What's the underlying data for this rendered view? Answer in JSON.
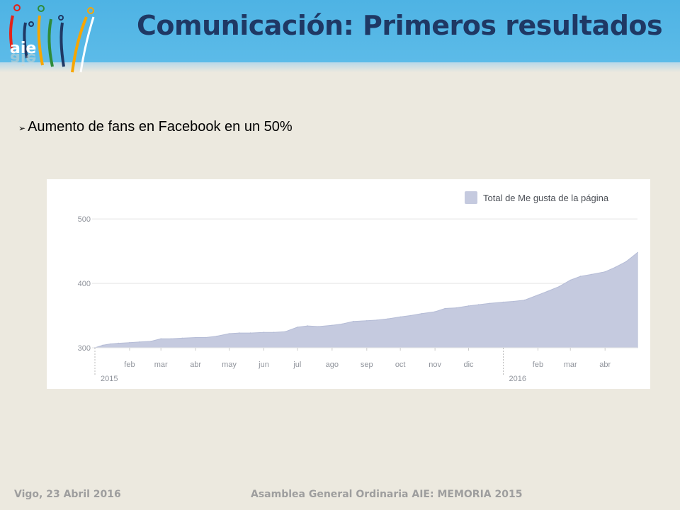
{
  "header": {
    "title": "Comunicación: Primeros resultados",
    "logo_text": "aie",
    "background_color": "#4EB3E4",
    "title_color": "#1F3864"
  },
  "bullet": {
    "icon": "arrowhead-bullet-icon",
    "text": "Aumento de fans en Facebook en un 50%"
  },
  "chart_data": {
    "type": "area",
    "legend": [
      "Total de Me gusta de la página"
    ],
    "legend_position": "top-right",
    "grid": true,
    "ylim": [
      300,
      520
    ],
    "yticks": [
      300,
      400,
      500
    ],
    "x_month_labels": [
      "feb",
      "mar",
      "abr",
      "may",
      "jun",
      "jul",
      "ago",
      "sep",
      "oct",
      "nov",
      "dic",
      "feb",
      "mar",
      "abr"
    ],
    "x_year_labels": [
      "2015",
      "2016"
    ],
    "series": [
      {
        "name": "Total de Me gusta de la página",
        "color": "#C5CADF",
        "x": [
          "2015-01-01",
          "2015-01-08",
          "2015-01-15",
          "2015-01-22",
          "2015-02-01",
          "2015-02-10",
          "2015-02-20",
          "2015-03-01",
          "2015-03-10",
          "2015-03-20",
          "2015-04-01",
          "2015-04-10",
          "2015-04-20",
          "2015-05-01",
          "2015-05-10",
          "2015-05-20",
          "2015-06-01",
          "2015-06-10",
          "2015-06-20",
          "2015-07-01",
          "2015-07-10",
          "2015-07-20",
          "2015-08-01",
          "2015-08-10",
          "2015-08-20",
          "2015-09-01",
          "2015-09-10",
          "2015-09-20",
          "2015-10-01",
          "2015-10-10",
          "2015-10-20",
          "2015-11-01",
          "2015-11-10",
          "2015-11-20",
          "2015-12-01",
          "2015-12-10",
          "2015-12-20",
          "2016-01-01",
          "2016-01-10",
          "2016-01-20",
          "2016-02-01",
          "2016-02-10",
          "2016-02-20",
          "2016-03-01",
          "2016-03-10",
          "2016-03-20",
          "2016-04-01",
          "2016-04-10",
          "2016-04-20",
          "2016-04-30"
        ],
        "values": [
          300,
          304,
          306,
          307,
          308,
          309,
          310,
          314,
          314,
          315,
          316,
          316,
          318,
          322,
          323,
          323,
          324,
          324,
          325,
          332,
          334,
          333,
          335,
          337,
          341,
          342,
          343,
          345,
          348,
          350,
          353,
          356,
          361,
          362,
          365,
          367,
          369,
          371,
          372,
          374,
          382,
          388,
          395,
          405,
          411,
          414,
          418,
          425,
          434,
          448
        ]
      }
    ]
  },
  "footer": {
    "left": "Vigo, 23 Abril 2016",
    "right": "Asamblea General Ordinaria AIE:  MEMORIA 2015"
  }
}
